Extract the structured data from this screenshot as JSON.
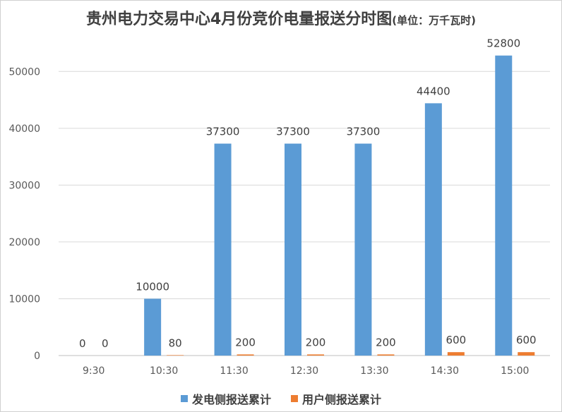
{
  "chart_data": {
    "type": "bar",
    "title": "贵州电力交易中心4月份竞价电量报送分时图",
    "unit_note": "(单位：万千瓦时)",
    "categories": [
      "9:30",
      "10:30",
      "11:30",
      "12:30",
      "13:30",
      "14:30",
      "15:00"
    ],
    "series": [
      {
        "name": "发电侧报送累计",
        "color": "#5b9bd5",
        "values": [
          0,
          10000,
          37300,
          37300,
          37300,
          44400,
          52800
        ]
      },
      {
        "name": "用户侧报送累计",
        "color": "#ed7d31",
        "values": [
          0,
          80,
          200,
          200,
          200,
          600,
          600
        ]
      }
    ],
    "ylim": [
      0,
      55000
    ],
    "yticks": [
      0,
      10000,
      20000,
      30000,
      40000,
      50000
    ],
    "grid": true,
    "legend_position": "bottom"
  }
}
